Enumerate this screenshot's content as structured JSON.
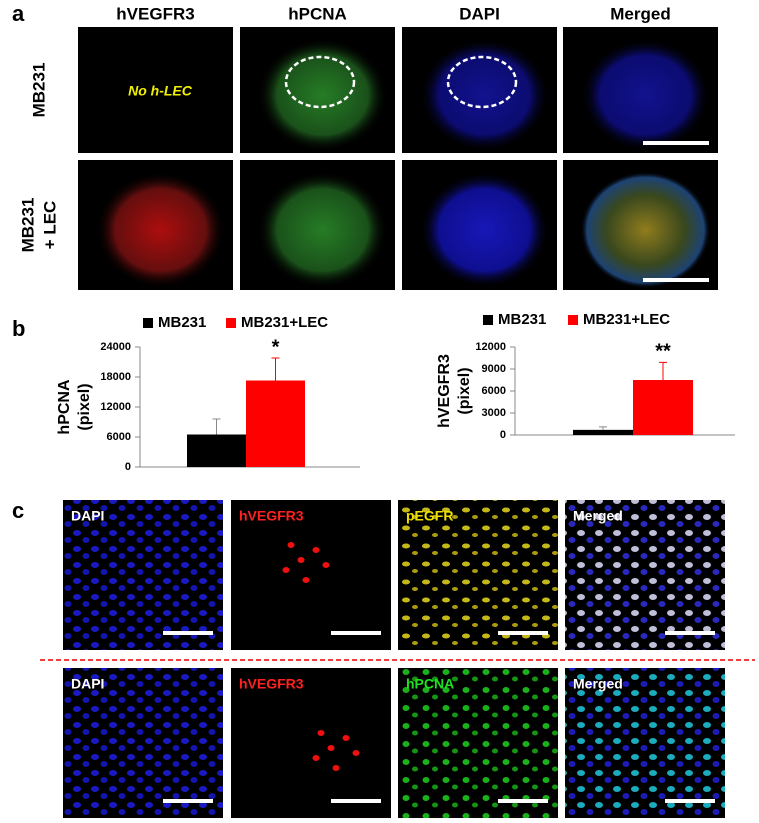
{
  "panel_labels": [
    "a",
    "b",
    "c"
  ],
  "panel_a": {
    "columns": [
      "hVEGFR3",
      "hPCNA",
      "DAPI",
      "Merged"
    ],
    "rows": [
      [
        "MB231"
      ],
      [
        "MB231",
        "+ LEC"
      ]
    ],
    "note": "No h-LEC"
  },
  "chart_data": [
    {
      "type": "bar",
      "categories": [
        null
      ],
      "y_label": [
        "hPCNA",
        "(pixel)"
      ],
      "series": [
        {
          "name": "MB231",
          "color": "#000000",
          "values": [
            6500
          ],
          "errors": [
            3100
          ]
        },
        {
          "name": "MB231+LEC",
          "color": "#ff0000",
          "values": [
            17300
          ],
          "errors": [
            4500
          ]
        }
      ],
      "annotation": "*",
      "ylim": [
        0,
        24000
      ],
      "yticks": [
        0,
        6000,
        12000,
        18000,
        24000
      ]
    },
    {
      "type": "bar",
      "categories": [
        null
      ],
      "y_label": [
        "hVEGFR3",
        "(pixel)"
      ],
      "series": [
        {
          "name": "MB231",
          "color": "#000000",
          "values": [
            700
          ],
          "errors": [
            400
          ]
        },
        {
          "name": "MB231+LEC",
          "color": "#ff0000",
          "values": [
            7500
          ],
          "errors": [
            2400
          ]
        }
      ],
      "annotation": "**",
      "ylim": [
        0,
        12000
      ],
      "yticks": [
        0,
        3000,
        6000,
        9000,
        12000
      ]
    }
  ],
  "panel_c": {
    "rows": [
      [
        "DAPI",
        "hVEGFR3",
        "pEGFR",
        "Merged"
      ],
      [
        "DAPI",
        "hVEGFR3",
        "hPCNA",
        "Merged"
      ]
    ]
  }
}
